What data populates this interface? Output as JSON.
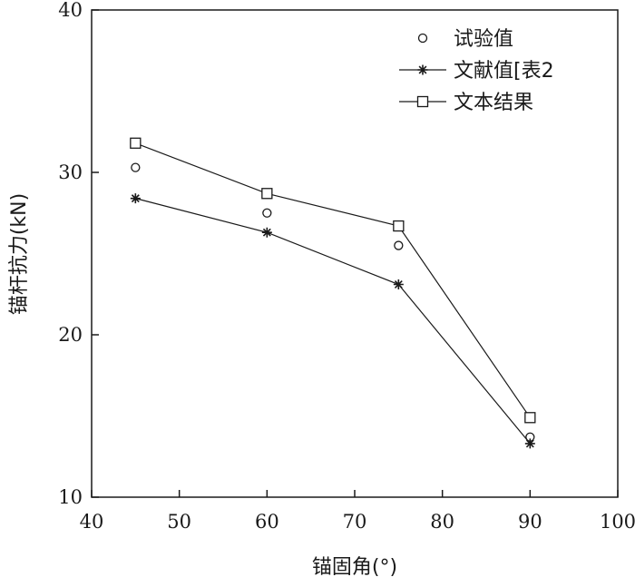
{
  "chart_data": {
    "type": "line",
    "title": "",
    "xlabel": "锚固角(°)",
    "ylabel": "锚杆抗力(kN)",
    "xlim": [
      40,
      100
    ],
    "ylim": [
      10,
      40
    ],
    "xticks": [
      40,
      50,
      60,
      70,
      80,
      90,
      100
    ],
    "yticks": [
      10,
      20,
      30,
      40
    ],
    "grid": false,
    "legend_position": "top-right",
    "series": [
      {
        "name": "试验值",
        "style": "markers-only",
        "marker": "circle",
        "x": [
          45,
          60,
          75,
          90
        ],
        "y": [
          30.3,
          27.5,
          25.5,
          13.7
        ]
      },
      {
        "name": "文献值[表2",
        "style": "line-with-markers",
        "marker": "asterisk",
        "x": [
          45,
          60,
          75,
          90
        ],
        "y": [
          28.4,
          26.3,
          23.1,
          13.3
        ]
      },
      {
        "name": "文本结果",
        "style": "line-with-markers",
        "marker": "square",
        "x": [
          45,
          60,
          75,
          90
        ],
        "y": [
          31.8,
          28.7,
          26.7,
          14.9
        ]
      }
    ],
    "colors": {
      "ink": "#1a1a1a"
    }
  }
}
